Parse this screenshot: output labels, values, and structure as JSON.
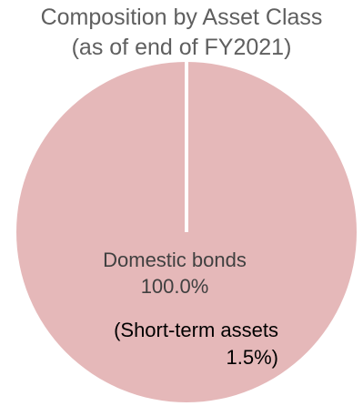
{
  "chart_data": {
    "type": "pie",
    "title": [
      "Composition by Asset Class",
      "(as of end of FY2021)"
    ],
    "slices": [
      {
        "label": "Domestic bonds",
        "value": 100.0,
        "value_label": "100.0%"
      }
    ],
    "annotations": [
      {
        "label": "(Short-term assets",
        "value_label": "1.5%)",
        "value": 1.5
      }
    ],
    "colors": {
      "slice": "#e5b8b9",
      "divider": "#ffffff",
      "label": "#404040",
      "annotation": "#000000"
    }
  }
}
